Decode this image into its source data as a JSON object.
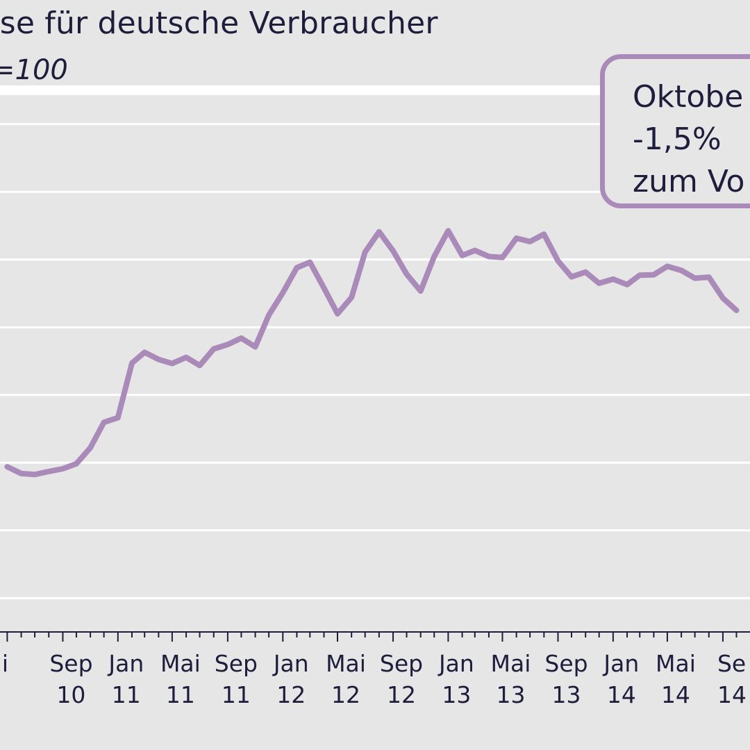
{
  "header": {
    "title": "eise für deutsche Verbraucher",
    "subtitle": "=100"
  },
  "callout": {
    "lines": [
      "Oktobe",
      "-1,5%",
      "zum Vo"
    ]
  },
  "colors": {
    "line": "#a98ab8",
    "grid": "#ffffff",
    "background": "#e6e6e6",
    "text": "#1e1d3c"
  },
  "chart_data": {
    "type": "line",
    "title": "eise für deutsche Verbraucher",
    "subtitle": "=100",
    "xlabel": "",
    "ylabel": "",
    "grid": true,
    "x_tick_labels": [
      {
        "month": "ai",
        "year": ""
      },
      {
        "month": "Sep",
        "year": "10"
      },
      {
        "month": "Jan",
        "year": "11"
      },
      {
        "month": "Mai",
        "year": "11"
      },
      {
        "month": "Sep",
        "year": "11"
      },
      {
        "month": "Jan",
        "year": "12"
      },
      {
        "month": "Mai",
        "year": "12"
      },
      {
        "month": "Sep",
        "year": "12"
      },
      {
        "month": "Jan",
        "year": "13"
      },
      {
        "month": "Mai",
        "year": "13"
      },
      {
        "month": "Sep",
        "year": "13"
      },
      {
        "month": "Jan",
        "year": "14"
      },
      {
        "month": "Mai",
        "year": "14"
      },
      {
        "month": "Se",
        "year": "14"
      }
    ],
    "x": [
      "2010-05",
      "2010-06",
      "2010-07",
      "2010-08",
      "2010-09",
      "2010-10",
      "2010-11",
      "2010-12",
      "2011-01",
      "2011-02",
      "2011-03",
      "2011-04",
      "2011-05",
      "2011-06",
      "2011-07",
      "2011-08",
      "2011-09",
      "2011-10",
      "2011-11",
      "2011-12",
      "2012-01",
      "2012-02",
      "2012-03",
      "2012-04",
      "2012-05",
      "2012-06",
      "2012-07",
      "2012-08",
      "2012-09",
      "2012-10",
      "2012-11",
      "2012-12",
      "2013-01",
      "2013-02",
      "2013-03",
      "2013-04",
      "2013-05",
      "2013-06",
      "2013-07",
      "2013-08",
      "2013-09",
      "2013-10",
      "2013-11",
      "2013-12",
      "2014-01",
      "2014-02",
      "2014-03",
      "2014-04",
      "2014-05",
      "2014-06",
      "2014-07",
      "2014-08",
      "2014-09",
      "2014-10"
    ],
    "series": [
      {
        "name": "",
        "values": [
          3.88,
          3.68,
          3.65,
          3.74,
          3.82,
          3.97,
          4.44,
          5.19,
          5.33,
          6.94,
          7.26,
          7.05,
          6.93,
          7.11,
          6.87,
          7.36,
          7.49,
          7.68,
          7.42,
          8.36,
          9.02,
          9.76,
          9.92,
          9.16,
          8.4,
          8.88,
          10.22,
          10.82,
          10.26,
          9.57,
          9.07,
          10.09,
          10.85,
          10.12,
          10.27,
          10.09,
          10.06,
          10.63,
          10.53,
          10.75,
          9.96,
          9.49,
          9.63,
          9.3,
          9.42,
          9.26,
          9.54,
          9.55,
          9.8,
          9.68,
          9.45,
          9.48,
          8.86,
          8.5
        ]
      }
    ],
    "x_range": [
      "2010-04-15",
      "2014-10-31"
    ],
    "ylim": [
      -1,
      15
    ],
    "y_gridlines": [
      0,
      2,
      4,
      6,
      8,
      10,
      12,
      14
    ]
  }
}
